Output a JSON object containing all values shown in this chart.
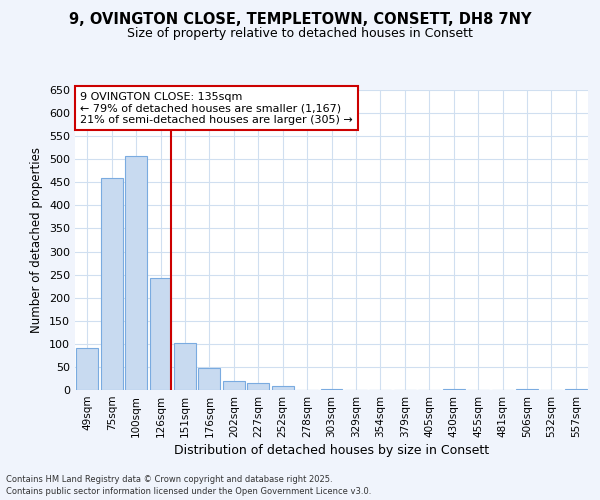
{
  "title_line1": "9, OVINGTON CLOSE, TEMPLETOWN, CONSETT, DH8 7NY",
  "title_line2": "Size of property relative to detached houses in Consett",
  "xlabel": "Distribution of detached houses by size in Consett",
  "ylabel": "Number of detached properties",
  "bar_labels": [
    "49sqm",
    "75sqm",
    "100sqm",
    "126sqm",
    "151sqm",
    "176sqm",
    "202sqm",
    "227sqm",
    "252sqm",
    "278sqm",
    "303sqm",
    "329sqm",
    "354sqm",
    "379sqm",
    "405sqm",
    "430sqm",
    "455sqm",
    "481sqm",
    "506sqm",
    "532sqm",
    "557sqm"
  ],
  "bar_values": [
    90,
    460,
    507,
    243,
    102,
    48,
    19,
    15,
    9,
    0,
    3,
    0,
    0,
    0,
    0,
    2,
    0,
    0,
    3,
    0,
    2
  ],
  "bar_color": "#c8daf0",
  "bar_edge_color": "#7aabe0",
  "grid_color": "#d0dff0",
  "plot_bg_color": "#ffffff",
  "fig_bg_color": "#f0f4fc",
  "vline_x_index": 3,
  "vline_color": "#cc0000",
  "annotation_text": "9 OVINGTON CLOSE: 135sqm\n← 79% of detached houses are smaller (1,167)\n21% of semi-detached houses are larger (305) →",
  "annotation_box_color": "#ffffff",
  "annotation_box_edge": "#cc0000",
  "ylim": [
    0,
    650
  ],
  "yticks": [
    0,
    50,
    100,
    150,
    200,
    250,
    300,
    350,
    400,
    450,
    500,
    550,
    600,
    650
  ],
  "footer_line1": "Contains HM Land Registry data © Crown copyright and database right 2025.",
  "footer_line2": "Contains public sector information licensed under the Open Government Licence v3.0."
}
